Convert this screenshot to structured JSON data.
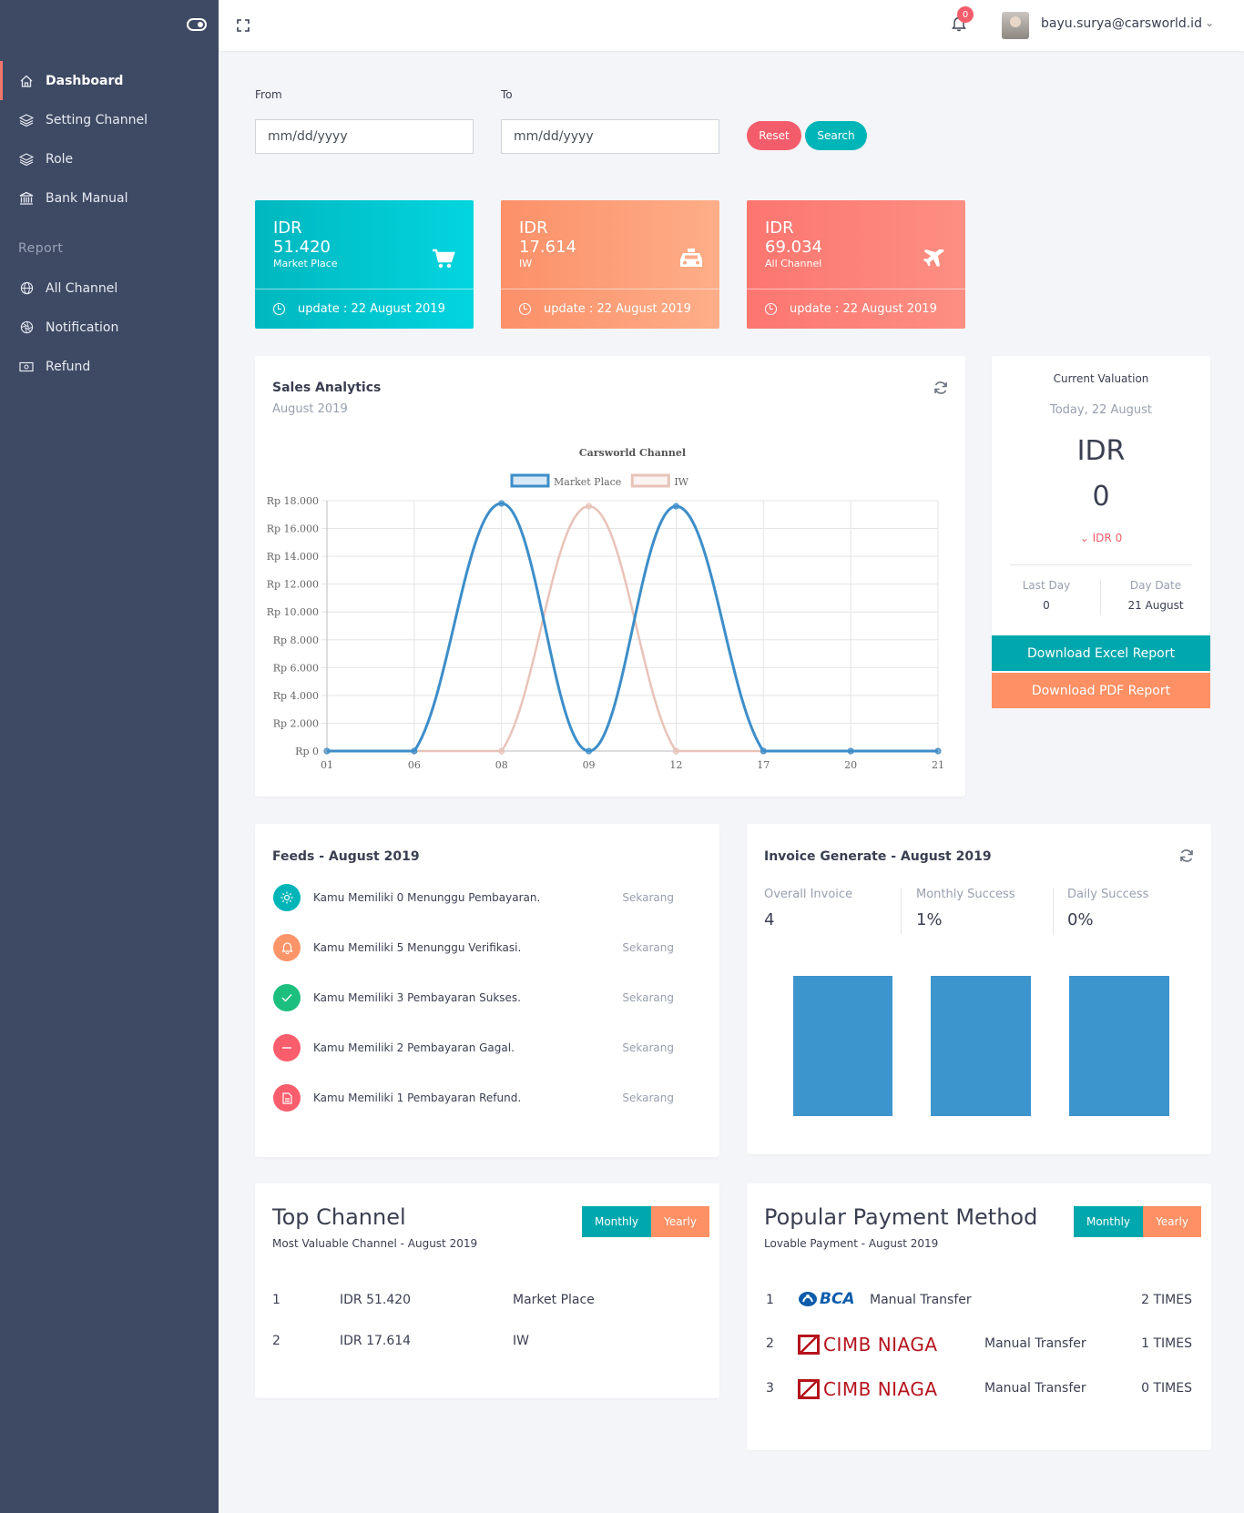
{
  "sidebar": {
    "items": [
      {
        "label": "Dashboard",
        "icon": "home-icon"
      },
      {
        "label": "Setting Channel",
        "icon": "layers-icon"
      },
      {
        "label": "Role",
        "icon": "layers-icon"
      },
      {
        "label": "Bank Manual",
        "icon": "bank-icon"
      }
    ],
    "section_label": "Report",
    "report_items": [
      {
        "label": "All Channel",
        "icon": "globe-icon"
      },
      {
        "label": "Notification",
        "icon": "aperture-icon"
      },
      {
        "label": "Refund",
        "icon": "money-icon"
      }
    ]
  },
  "topbar": {
    "notification_count": "0",
    "user_email": "bayu.surya@carsworld.id"
  },
  "filter": {
    "from_label": "From",
    "to_label": "To",
    "from_value": "mm/dd/yyyy",
    "to_value": "mm/dd/yyyy",
    "reset_label": "Reset",
    "search_label": "Search"
  },
  "stats": [
    {
      "currency": "IDR",
      "value": "51.420",
      "name": "Market Place",
      "update": "update : 22 August 2019",
      "icon": "cart-icon",
      "color": "#00bcc2"
    },
    {
      "currency": "IDR",
      "value": "17.614",
      "name": "IW",
      "update": "update : 22 August 2019",
      "icon": "taxi-icon",
      "color": "#fc9f77"
    },
    {
      "currency": "IDR",
      "value": "69.034",
      "name": "All Channel",
      "update": "update : 22 August 2019",
      "icon": "plane-icon",
      "color": "#fc7f7a"
    }
  ],
  "sales": {
    "title": "Sales Analytics",
    "subtitle": "August 2019"
  },
  "chart_data": {
    "type": "line",
    "title": "Carsworld Channel",
    "categories": [
      "01",
      "06",
      "08",
      "09",
      "12",
      "17",
      "20",
      "21"
    ],
    "series": [
      {
        "name": "Market Place",
        "values": [
          0,
          0,
          17800,
          0,
          17600,
          0,
          0,
          0
        ],
        "color": "#3d8ec9"
      },
      {
        "name": "IW",
        "values": [
          0,
          0,
          0,
          17600,
          0,
          0,
          0,
          0
        ],
        "color": "#e8c3b9"
      }
    ],
    "ylim": [
      0,
      18000
    ],
    "yticks": [
      "Rp 0",
      "Rp 2.000",
      "Rp 4.000",
      "Rp 6.000",
      "Rp 8.000",
      "Rp 10.000",
      "Rp 12.000",
      "Rp 14.000",
      "Rp 16.000",
      "Rp 18.000"
    ],
    "legend_position": "top",
    "grid": true
  },
  "valuation": {
    "title": "Current Valuation",
    "date": "Today, 22 August",
    "currency": "IDR",
    "amount": "0",
    "change": "IDR 0",
    "last_day_label": "Last Day",
    "last_day_value": "0",
    "day_date_label": "Day Date",
    "day_date_value": "21 August",
    "excel_label": "Download Excel Report",
    "pdf_label": "Download PDF Report"
  },
  "feeds": {
    "title": "Feeds - August 2019",
    "items": [
      {
        "text": "Kamu Memiliki 0 Menunggu Pembayaran.",
        "time": "Sekarang",
        "color": "#00b5b8",
        "icon": "sun-icon"
      },
      {
        "text": "Kamu Memiliki 5 Menunggu Verifikasi.",
        "time": "Sekarang",
        "color": "#fc9469",
        "icon": "bell-icon"
      },
      {
        "text": "Kamu Memiliki 3 Pembayaran Sukses.",
        "time": "Sekarang",
        "color": "#1cbf7e",
        "icon": "check-icon"
      },
      {
        "text": "Kamu Memiliki 2 Pembayaran Gagal.",
        "time": "Sekarang",
        "color": "#fa5d6c",
        "icon": "minus-icon"
      },
      {
        "text": "Kamu Memiliki 1 Pembayaran Refund.",
        "time": "Sekarang",
        "color": "#fa5d6c",
        "icon": "file-icon"
      }
    ]
  },
  "invoice": {
    "title": "Invoice Generate - August 2019",
    "overall_label": "Overall Invoice",
    "overall_value": "4",
    "monthly_label": "Monthly Success",
    "monthly_value": "1%",
    "daily_label": "Daily Success",
    "daily_value": "0%",
    "bar_color": "#3d95ce"
  },
  "top_channel": {
    "title": "Top Channel",
    "subtitle": "Most Valuable Channel - August 2019",
    "monthly_label": "Monthly",
    "yearly_label": "Yearly",
    "rows": [
      {
        "rank": "1",
        "amount": "IDR 51.420",
        "name": "Market Place"
      },
      {
        "rank": "2",
        "amount": "IDR 17.614",
        "name": "IW"
      }
    ]
  },
  "payment": {
    "title": "Popular Payment Method",
    "subtitle": "Lovable Payment - August 2019",
    "monthly_label": "Monthly",
    "yearly_label": "Yearly",
    "rows": [
      {
        "rank": "1",
        "bank": "BCA",
        "method": "Manual Transfer",
        "count": "2 TIMES"
      },
      {
        "rank": "2",
        "bank": "CIMB NIAGA",
        "method": "Manual Transfer",
        "count": "1 TIMES"
      },
      {
        "rank": "3",
        "bank": "CIMB NIAGA",
        "method": "Manual Transfer",
        "count": "0 TIMES"
      }
    ]
  },
  "colors": {
    "teal": "#00b5b8",
    "orange": "#fc9469",
    "red": "#fa5d6c",
    "sidebar": "#3e4a64"
  }
}
